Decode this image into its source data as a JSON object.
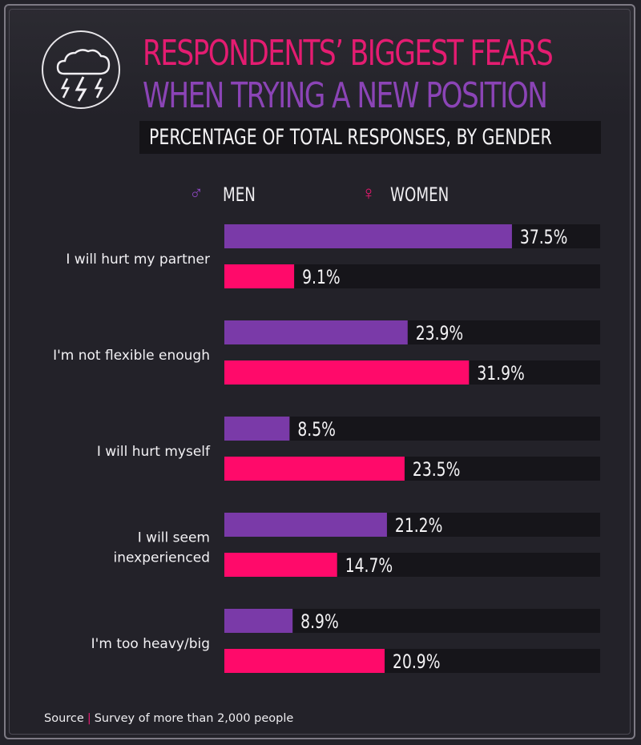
{
  "title": {
    "line1": "RESPONDENTS’ BIGGEST FEARS",
    "line2": "WHEN TRYING A NEW POSITION",
    "line1_color": "#e41c71",
    "line2_color": "#8b44b6"
  },
  "subtitle": "PERCENTAGE OF TOTAL RESPONSES, BY GENDER",
  "badge_icon": "storm-cloud-lightning-icon",
  "legend": {
    "men": {
      "symbol": "♂",
      "label": "MEN",
      "color": "#7a3aa8"
    },
    "women": {
      "symbol": "♀",
      "label": "WOMEN",
      "color": "#ff0a6a"
    }
  },
  "chart_data": {
    "type": "bar",
    "orientation": "horizontal",
    "value_format": "percent",
    "xlim": [
      0,
      49
    ],
    "grid": false,
    "categories": [
      [
        "I will hurt my partner"
      ],
      [
        "I'm not flexible enough"
      ],
      [
        "I will hurt myself"
      ],
      [
        "I will seem",
        "inexperienced"
      ],
      [
        "I'm too heavy/big"
      ]
    ],
    "series": [
      {
        "name": "MEN",
        "color": "#7a3aa8",
        "values": [
          37.5,
          23.9,
          8.5,
          21.2,
          8.9
        ]
      },
      {
        "name": "WOMEN",
        "color": "#ff0a6a",
        "values": [
          9.1,
          31.9,
          23.5,
          14.7,
          20.9
        ]
      }
    ],
    "track_color": "#16151a"
  },
  "source": {
    "label": "Source",
    "separator": "|",
    "text": "Survey of more than 2,000 people"
  }
}
